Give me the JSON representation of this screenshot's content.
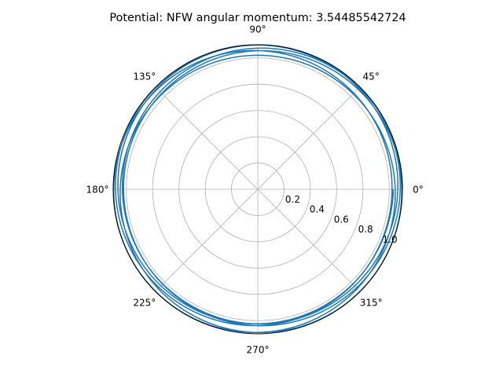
{
  "chart_data": {
    "type": "line",
    "projection": "polar",
    "title": "Potential: NFW angular momentum: 3.54485542724",
    "theta_ticks": [
      {
        "deg": 0,
        "label": "0°"
      },
      {
        "deg": 45,
        "label": "45°"
      },
      {
        "deg": 90,
        "label": "90°"
      },
      {
        "deg": 135,
        "label": "135°"
      },
      {
        "deg": 180,
        "label": "180°"
      },
      {
        "deg": 225,
        "label": "225°"
      },
      {
        "deg": 270,
        "label": "270°"
      },
      {
        "deg": 315,
        "label": "315°"
      }
    ],
    "r_ticks": [
      {
        "value": 0.2,
        "label": "0.2"
      },
      {
        "value": 0.4,
        "label": "0.4"
      },
      {
        "value": 0.6,
        "label": "0.6"
      },
      {
        "value": 0.8,
        "label": "0.8"
      },
      {
        "value": 1.0,
        "label": "1.0"
      }
    ],
    "rlim": [
      0,
      1.1
    ],
    "grid": true,
    "series": [
      {
        "color": "#1f77b4",
        "r_min": 1.02,
        "r_max": 1.1,
        "theta_end_deg": 2160,
        "note_values": "orbit oscillates between r_min and r_max"
      }
    ]
  }
}
